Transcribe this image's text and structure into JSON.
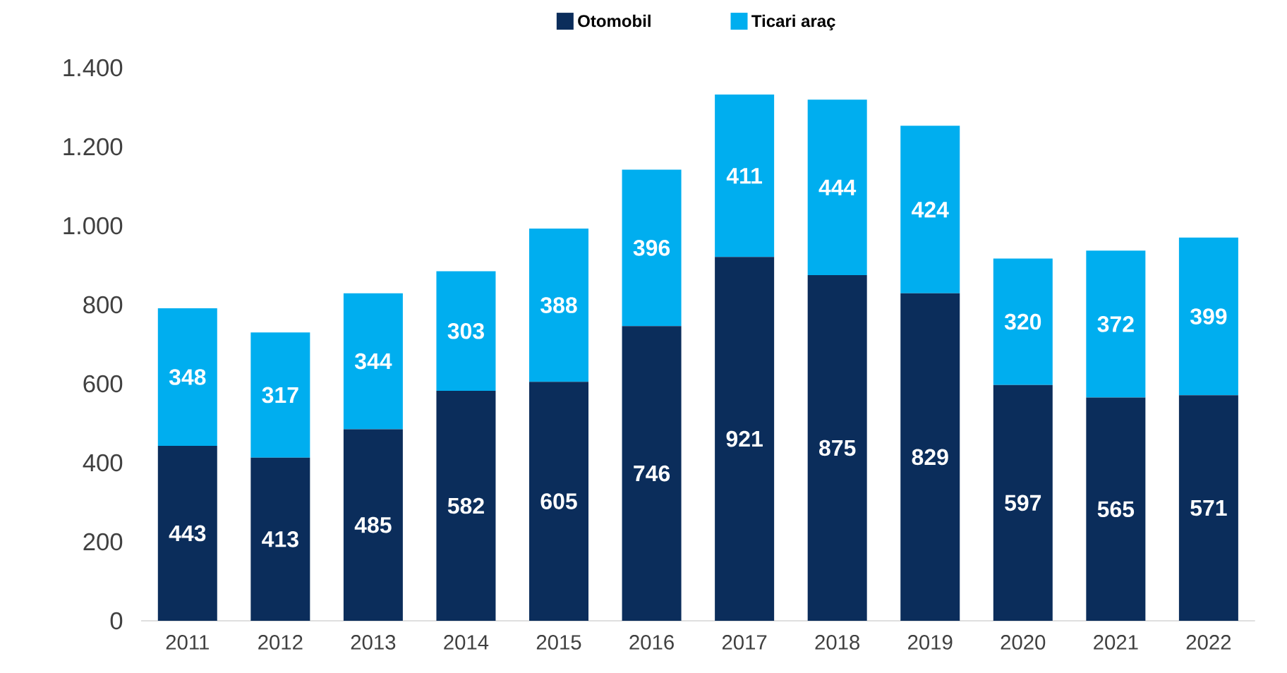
{
  "chart_data": {
    "type": "bar",
    "stacked": true,
    "data_labels": true,
    "legend": "top",
    "grid": false,
    "categories": [
      "2011",
      "2012",
      "2013",
      "2014",
      "2015",
      "2016",
      "2017",
      "2018",
      "2019",
      "2020",
      "2021",
      "2022"
    ],
    "series": [
      {
        "name": "Otomobil",
        "color": "#0b2d5b",
        "values": [
          443,
          413,
          485,
          582,
          605,
          746,
          921,
          875,
          829,
          597,
          565,
          571
        ]
      },
      {
        "name": "Ticari araç",
        "color": "#00aeef",
        "values": [
          348,
          317,
          344,
          303,
          388,
          396,
          411,
          444,
          424,
          320,
          372,
          399
        ]
      }
    ],
    "ylim": [
      0,
      1400
    ],
    "yticks": [
      0,
      200,
      400,
      600,
      800,
      {
        "value": 1000,
        "label": "1.000"
      },
      {
        "value": 1200,
        "label": "1.200"
      },
      {
        "value": 1400,
        "label": "1.400"
      }
    ]
  }
}
